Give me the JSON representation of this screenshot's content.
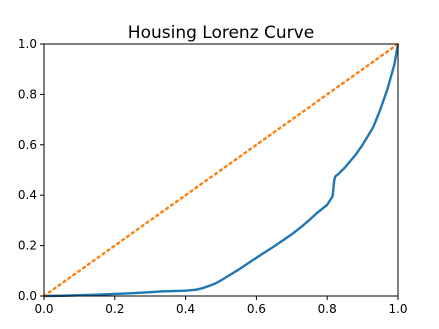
{
  "chart_data": {
    "type": "line",
    "title": "Housing Lorenz Curve",
    "xlabel": "",
    "ylabel": "",
    "xlim": [
      0.0,
      1.0
    ],
    "ylim": [
      0.0,
      1.0
    ],
    "grid": false,
    "legend": "none",
    "x_ticks": [
      "0.0",
      "0.2",
      "0.4",
      "0.6",
      "0.8",
      "1.0"
    ],
    "y_ticks": [
      "0.0",
      "0.2",
      "0.4",
      "0.6",
      "0.8",
      "1.0"
    ],
    "series": [
      {
        "style": "solid",
        "color": "#1f77b4",
        "x": [
          0.0,
          0.05,
          0.1,
          0.15,
          0.2,
          0.25,
          0.3,
          0.33,
          0.35,
          0.4,
          0.43,
          0.45,
          0.48,
          0.5,
          0.55,
          0.6,
          0.65,
          0.7,
          0.73,
          0.75,
          0.77,
          0.8,
          0.815,
          0.82,
          0.823,
          0.83,
          0.85,
          0.88,
          0.9,
          0.93,
          0.95,
          0.97,
          0.99,
          1.0
        ],
        "y": [
          0.0,
          0.001,
          0.003,
          0.005,
          0.008,
          0.011,
          0.015,
          0.018,
          0.019,
          0.021,
          0.025,
          0.032,
          0.047,
          0.062,
          0.105,
          0.152,
          0.197,
          0.245,
          0.278,
          0.302,
          0.328,
          0.362,
          0.395,
          0.46,
          0.475,
          0.482,
          0.51,
          0.56,
          0.6,
          0.67,
          0.74,
          0.82,
          0.92,
          1.0
        ]
      },
      {
        "style": "dotted",
        "color": "#ff7f0e",
        "x": [
          0.0,
          1.0
        ],
        "y": [
          0.0,
          1.0
        ]
      }
    ]
  }
}
